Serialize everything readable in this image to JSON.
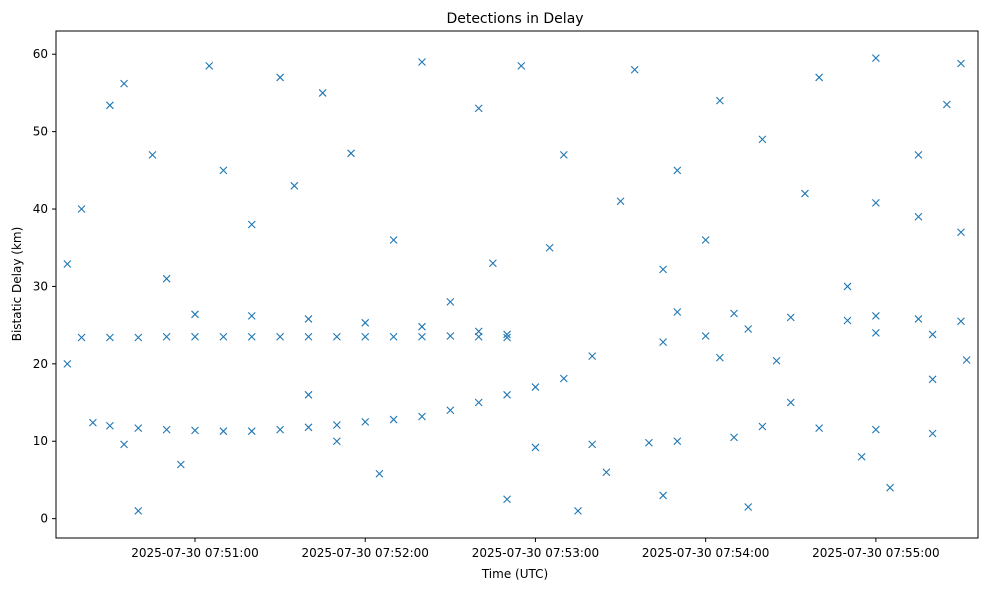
{
  "chart_data": {
    "type": "scatter",
    "title": "Detections in Delay",
    "xlabel": "Time (UTC)",
    "ylabel": "Bistatic Delay (km)",
    "x_axis_type": "datetime",
    "xlim": [
      "2025-07-30 07:50:11",
      "2025-07-30 07:55:36"
    ],
    "ylim": [
      -2.5,
      63
    ],
    "x_ticks": [
      "2025-07-30 07:51:00",
      "2025-07-30 07:52:00",
      "2025-07-30 07:53:00",
      "2025-07-30 07:54:00",
      "2025-07-30 07:55:00"
    ],
    "y_ticks": [
      0,
      10,
      20,
      30,
      40,
      50,
      60
    ],
    "marker": "x",
    "color": "#1f77b4",
    "grid": false,
    "legend": "none",
    "series": [
      {
        "points": [
          [
            "07:50:20",
            23.4
          ],
          [
            "07:50:30",
            23.4
          ],
          [
            "07:50:40",
            23.4
          ],
          [
            "07:50:50",
            23.5
          ],
          [
            "07:51:00",
            23.5
          ],
          [
            "07:51:10",
            23.5
          ],
          [
            "07:51:20",
            23.5
          ],
          [
            "07:51:30",
            23.5
          ],
          [
            "07:51:40",
            23.5
          ],
          [
            "07:51:50",
            23.5
          ],
          [
            "07:52:00",
            23.5
          ],
          [
            "07:52:10",
            23.5
          ],
          [
            "07:52:20",
            23.5
          ],
          [
            "07:52:30",
            23.6
          ],
          [
            "07:52:40",
            23.5
          ],
          [
            "07:52:50",
            23.4
          ],
          [
            "07:50:24",
            12.4
          ],
          [
            "07:50:30",
            12.0
          ],
          [
            "07:50:40",
            11.7
          ],
          [
            "07:50:50",
            11.5
          ],
          [
            "07:51:00",
            11.4
          ],
          [
            "07:51:10",
            11.3
          ],
          [
            "07:51:20",
            11.3
          ],
          [
            "07:51:30",
            11.5
          ],
          [
            "07:51:40",
            11.8
          ],
          [
            "07:51:50",
            12.1
          ],
          [
            "07:52:00",
            12.5
          ],
          [
            "07:52:10",
            12.8
          ],
          [
            "07:52:20",
            13.2
          ],
          [
            "07:52:30",
            14.0
          ],
          [
            "07:52:40",
            15.0
          ],
          [
            "07:52:50",
            16.0
          ],
          [
            "07:53:00",
            17.0
          ],
          [
            "07:53:10",
            18.1
          ],
          [
            "07:50:35",
            9.6
          ],
          [
            "07:51:50",
            10.0
          ],
          [
            "07:51:00",
            26.4
          ],
          [
            "07:51:20",
            26.2
          ],
          [
            "07:51:40",
            25.8
          ],
          [
            "07:52:00",
            25.3
          ],
          [
            "07:52:20",
            24.8
          ],
          [
            "07:52:40",
            24.2
          ],
          [
            "07:52:50",
            23.8
          ],
          [
            "07:53:50",
            10.0
          ],
          [
            "07:54:10",
            10.5
          ],
          [
            "07:54:20",
            11.9
          ],
          [
            "07:54:40",
            11.7
          ],
          [
            "07:55:00",
            11.5
          ],
          [
            "07:55:20",
            11.0
          ],
          [
            "07:53:45",
            22.8
          ],
          [
            "07:54:00",
            23.6
          ],
          [
            "07:54:15",
            24.5
          ],
          [
            "07:53:50",
            26.7
          ],
          [
            "07:54:10",
            26.5
          ],
          [
            "07:54:30",
            26.0
          ],
          [
            "07:54:50",
            25.6
          ],
          [
            "07:55:00",
            26.2
          ],
          [
            "07:55:15",
            25.8
          ],
          [
            "07:55:30",
            25.5
          ],
          [
            "07:55:00",
            24.0
          ],
          [
            "07:55:20",
            23.8
          ],
          [
            "07:54:05",
            20.8
          ],
          [
            "07:54:25",
            20.4
          ],
          [
            "07:55:00",
            40.8
          ],
          [
            "07:55:15",
            39.0
          ],
          [
            "07:55:30",
            37.0
          ],
          [
            "07:53:45",
            32.2
          ],
          [
            "07:53:00",
            9.2
          ],
          [
            "07:53:20",
            9.6
          ],
          [
            "07:53:40",
            9.8
          ],
          [
            "07:50:15",
            20.0
          ],
          [
            "07:50:15",
            32.9
          ],
          [
            "07:50:20",
            40.0
          ],
          [
            "07:50:30",
            53.4
          ],
          [
            "07:50:35",
            56.2
          ],
          [
            "07:50:45",
            47.0
          ],
          [
            "07:50:50",
            31.0
          ],
          [
            "07:51:05",
            58.5
          ],
          [
            "07:51:10",
            45.0
          ],
          [
            "07:51:20",
            38.0
          ],
          [
            "07:51:30",
            57.0
          ],
          [
            "07:51:40",
            16.0
          ],
          [
            "07:51:45",
            55.0
          ],
          [
            "07:51:55",
            47.2
          ],
          [
            "07:52:05",
            5.8
          ],
          [
            "07:52:10",
            36.0
          ],
          [
            "07:52:20",
            59.0
          ],
          [
            "07:52:30",
            28.0
          ],
          [
            "07:52:40",
            53.0
          ],
          [
            "07:52:50",
            2.5
          ],
          [
            "07:52:55",
            58.5
          ],
          [
            "07:53:05",
            35.0
          ],
          [
            "07:53:10",
            47.0
          ],
          [
            "07:53:20",
            21.0
          ],
          [
            "07:53:30",
            41.0
          ],
          [
            "07:53:35",
            58.0
          ],
          [
            "07:53:45",
            3.0
          ],
          [
            "07:53:50",
            45.0
          ],
          [
            "07:54:00",
            36.0
          ],
          [
            "07:54:05",
            54.0
          ],
          [
            "07:54:15",
            1.5
          ],
          [
            "07:54:20",
            49.0
          ],
          [
            "07:54:30",
            15.0
          ],
          [
            "07:54:40",
            57.0
          ],
          [
            "07:54:50",
            30.0
          ],
          [
            "07:55:00",
            59.5
          ],
          [
            "07:55:05",
            4.0
          ],
          [
            "07:55:15",
            47.0
          ],
          [
            "07:55:20",
            18.0
          ],
          [
            "07:55:25",
            53.5
          ],
          [
            "07:55:30",
            58.8
          ],
          [
            "07:55:32",
            20.5
          ],
          [
            "07:50:55",
            7.0
          ],
          [
            "07:51:35",
            43.0
          ],
          [
            "07:52:45",
            33.0
          ],
          [
            "07:53:25",
            6.0
          ],
          [
            "07:54:35",
            42.0
          ],
          [
            "07:54:55",
            8.0
          ],
          [
            "07:50:40",
            1.0
          ],
          [
            "07:53:15",
            1.0
          ]
        ]
      }
    ]
  }
}
